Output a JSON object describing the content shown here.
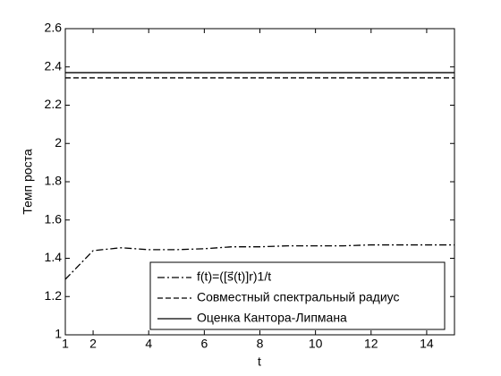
{
  "chart_data": {
    "type": "line",
    "xlabel": "t",
    "ylabel": "Темп роста",
    "x": [
      1,
      2,
      3,
      4,
      5,
      6,
      7,
      8,
      9,
      10,
      11,
      12,
      13,
      14,
      15
    ],
    "series": [
      {
        "name": "f(t)=([s⃗(t)]r)1/t",
        "color": "#000000",
        "dash": "8,3,2,3",
        "values": [
          1.29,
          1.44,
          1.455,
          1.445,
          1.445,
          1.45,
          1.46,
          1.46,
          1.465,
          1.465,
          1.465,
          1.47,
          1.47,
          1.47,
          1.47
        ]
      },
      {
        "name": "Совместный спектральный радиус",
        "color": "#000000",
        "dash": "6,3",
        "values": [
          2.343,
          2.343,
          2.343,
          2.343,
          2.343,
          2.343,
          2.343,
          2.343,
          2.343,
          2.343,
          2.343,
          2.343,
          2.343,
          2.343,
          2.343
        ]
      },
      {
        "name": "Оценка Кантора-Липмана",
        "color": "#000000",
        "dash": "none",
        "values": [
          2.37,
          2.37,
          2.37,
          2.37,
          2.37,
          2.37,
          2.37,
          2.37,
          2.37,
          2.37,
          2.37,
          2.37,
          2.37,
          2.37,
          2.37
        ]
      }
    ],
    "xlim": [
      1,
      15
    ],
    "xticks": [
      1,
      2,
      4,
      6,
      8,
      10,
      12,
      14
    ],
    "ylim": [
      1,
      2.6
    ],
    "yticks": [
      1,
      1.2,
      1.4,
      1.6,
      1.8,
      2,
      2.2,
      2.4,
      2.6
    ],
    "grid": false,
    "legend": "lower right"
  }
}
